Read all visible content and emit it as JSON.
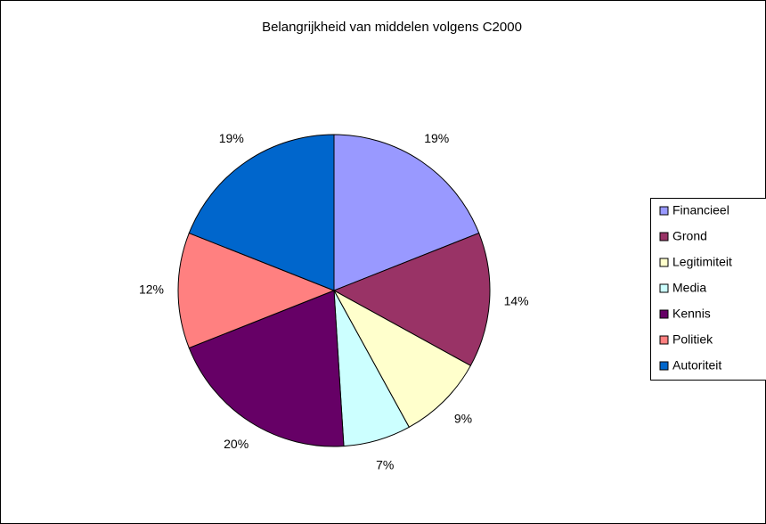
{
  "chart_data": {
    "type": "pie",
    "title": "Belangrijkheid van middelen volgens C2000",
    "categories": [
      "Financieel",
      "Grond",
      "Legitimiteit",
      "Media",
      "Kennis",
      "Politiek",
      "Autoriteit"
    ],
    "values": [
      19,
      14,
      9,
      7,
      20,
      12,
      19
    ],
    "value_labels": [
      "19%",
      "14%",
      "9%",
      "7%",
      "20%",
      "12%",
      "19%"
    ],
    "colors": [
      "#9999ff",
      "#993366",
      "#ffffcc",
      "#ccffff",
      "#660066",
      "#ff8080",
      "#0066cc"
    ],
    "legend": "right"
  }
}
